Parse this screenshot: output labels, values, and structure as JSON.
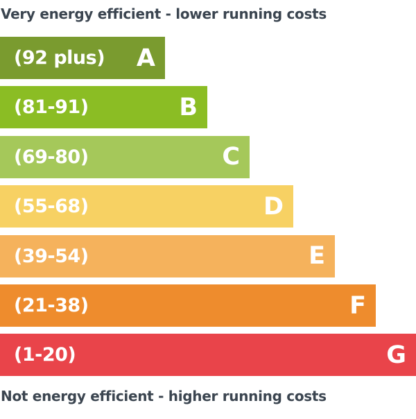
{
  "chart_data": {
    "type": "bar",
    "title": "Very energy efficient - lower running costs",
    "footer": "Not energy efficient - higher running costs",
    "categories": [
      "A",
      "B",
      "C",
      "D",
      "E",
      "F",
      "G"
    ],
    "ranges": [
      "(92 plus)",
      "(81-91)",
      "(69-80)",
      "(55-68)",
      "(39-54)",
      "(21-38)",
      "(1-20)"
    ],
    "colors": [
      "#7a9b2f",
      "#8bbd24",
      "#a5c85a",
      "#f7d163",
      "#f5b25c",
      "#ee8c2d",
      "#e9444a"
    ]
  }
}
